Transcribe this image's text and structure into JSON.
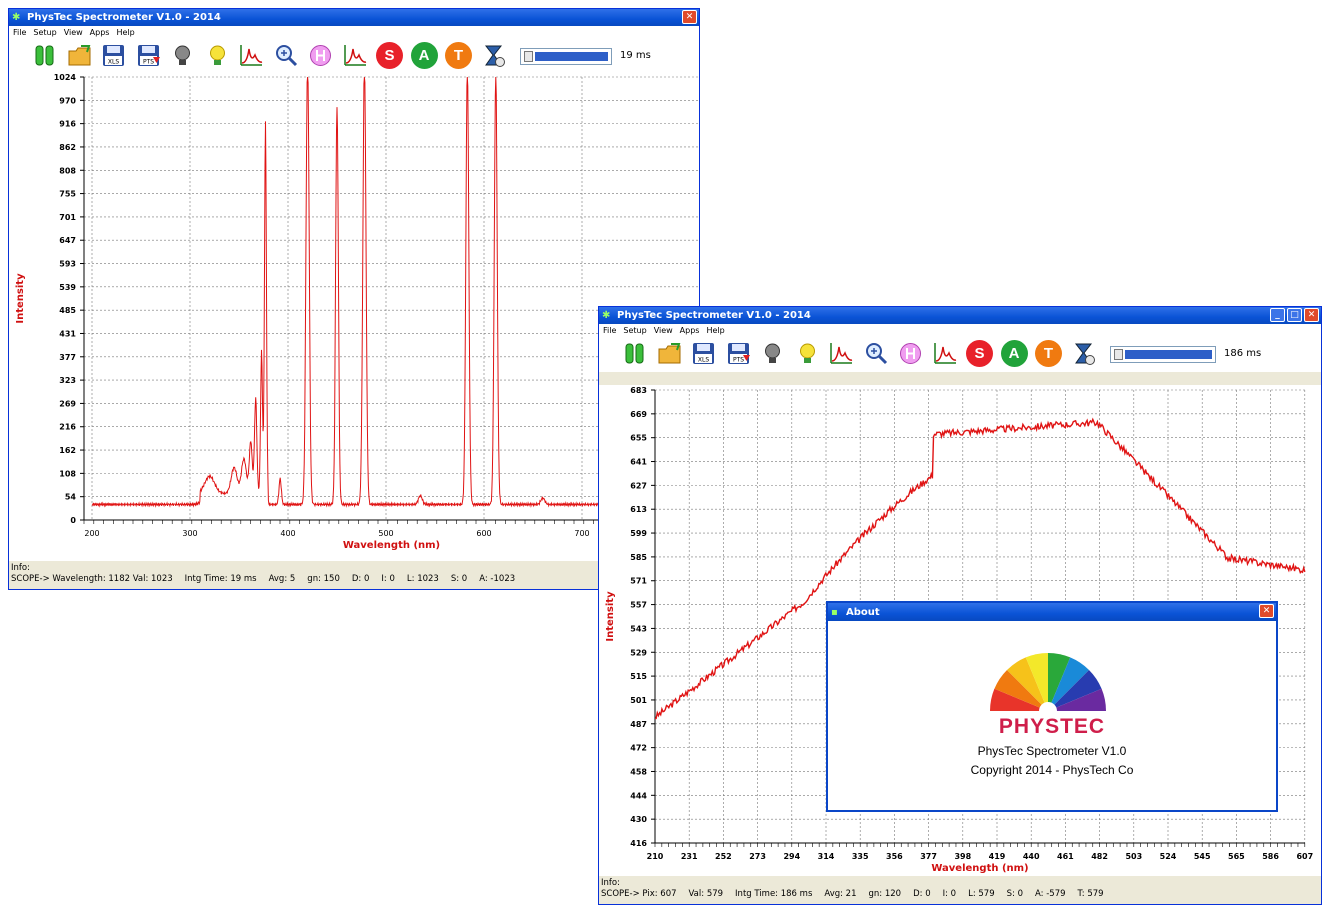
{
  "window1": {
    "title": "PhysTec Spectrometer V1.0 - 2014",
    "menu": [
      "File",
      "Setup",
      "View",
      "Apps",
      "Help"
    ],
    "integration_time": "19",
    "integration_unit": "ms",
    "plot": {
      "ylabel": "Intensity",
      "xlabel": "Wavelength (nm)",
      "yticks": [
        "1024",
        "970",
        "916",
        "862",
        "808",
        "755",
        "701",
        "647",
        "593",
        "539",
        "485",
        "431",
        "377",
        "323",
        "269",
        "216",
        "162",
        "108",
        "54",
        "0"
      ],
      "xticks": [
        "200",
        "300",
        "400",
        "500",
        "600",
        "700"
      ],
      "line_color": "#e01414"
    },
    "info_label": "Info:",
    "status": [
      "SCOPE-> Wavelength: 1182 Val: 1023",
      "Intg Time: 19 ms",
      "Avg: 5",
      "gn: 150",
      "D: 0",
      "I: 0",
      "L: 1023",
      "S: 0",
      "A: -1023"
    ]
  },
  "window2": {
    "title": "PhysTec Spectrometer V1.0 - 2014",
    "menu": [
      "File",
      "Setup",
      "View",
      "Apps",
      "Help"
    ],
    "integration_time": "186 ms",
    "plot": {
      "ylabel": "Intensity",
      "xlabel": "Wavelength (nm)",
      "yticks": [
        "683",
        "669",
        "655",
        "641",
        "627",
        "613",
        "599",
        "585",
        "571",
        "557",
        "543",
        "529",
        "515",
        "501",
        "487",
        "472",
        "458",
        "444",
        "430",
        "416"
      ],
      "xticks": [
        "210",
        "231",
        "252",
        "273",
        "294",
        "314",
        "335",
        "356",
        "377",
        "398",
        "419",
        "440",
        "461",
        "482",
        "503",
        "524",
        "545",
        "565",
        "586",
        "607"
      ],
      "line_color": "#e01414"
    },
    "info_label": "Info:",
    "status": [
      "SCOPE->  Pix: 607",
      "Val: 579",
      "Intg Time: 186 ms",
      "Avg: 21",
      "gn: 120",
      "D: 0",
      "I: 0",
      "L: 579",
      "S: 0",
      "A: -579",
      "T: 579"
    ]
  },
  "about": {
    "title": "About",
    "logo_text": "PHYSTEC",
    "product": "PhysTec Spectrometer V1.0",
    "copyright": "Copyright 2014 - PhysTech Co"
  },
  "toolbar_icons": [
    "start-icon",
    "open-folder-icon",
    "save-xls-icon",
    "save-pts-icon",
    "lamp-off-icon",
    "lamp-on-icon",
    "peak-icon",
    "zoom-icon",
    "marker-icon",
    "spectrum-icon",
    "s-mode-icon",
    "a-mode-icon",
    "t-mode-icon",
    "timer-icon"
  ],
  "colors": {
    "s_button": "#e8212a",
    "a_button": "#21a33a",
    "t_button": "#f07a10",
    "title_blue": "#0a53d6"
  }
}
